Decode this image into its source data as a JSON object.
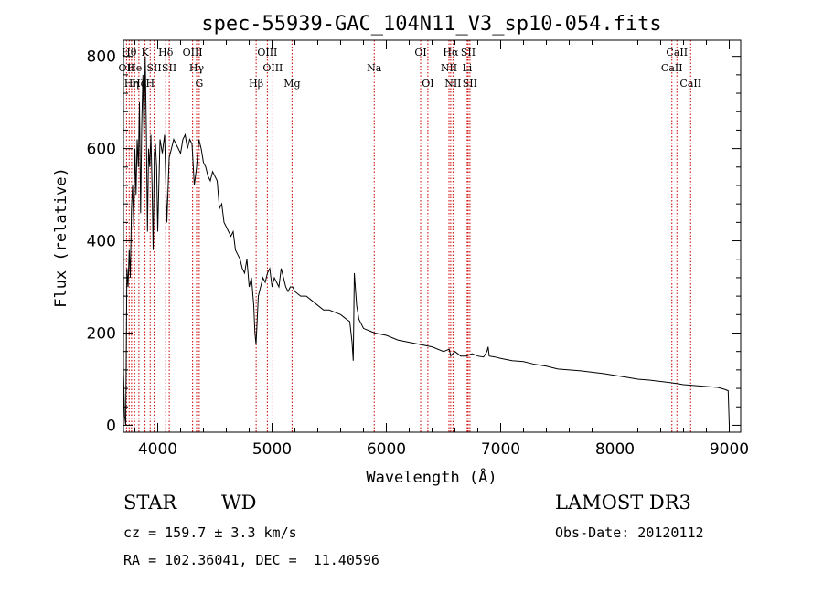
{
  "chart_data": {
    "type": "line",
    "title": "spec-55939-GAC_104N11_V3_sp10-054.fits",
    "xlabel": "Wavelength (Å)",
    "ylabel": "Flux (relative)",
    "xlim": [
      3700,
      9100
    ],
    "ylim": [
      -15,
      835
    ],
    "xticks": [
      4000,
      5000,
      6000,
      7000,
      8000,
      9000
    ],
    "yticks": [
      0,
      200,
      400,
      600,
      800
    ],
    "series": [
      {
        "name": "flux",
        "x": [
          3700,
          3710,
          3720,
          3730,
          3740,
          3750,
          3760,
          3770,
          3780,
          3790,
          3800,
          3810,
          3820,
          3830,
          3840,
          3850,
          3860,
          3870,
          3880,
          3890,
          3900,
          3910,
          3920,
          3930,
          3940,
          3950,
          3960,
          3970,
          3980,
          3990,
          4000,
          4020,
          4040,
          4060,
          4080,
          4100,
          4120,
          4140,
          4160,
          4180,
          4200,
          4220,
          4240,
          4260,
          4280,
          4300,
          4320,
          4340,
          4360,
          4380,
          4400,
          4420,
          4440,
          4460,
          4480,
          4500,
          4520,
          4540,
          4560,
          4580,
          4600,
          4620,
          4640,
          4660,
          4680,
          4700,
          4720,
          4740,
          4760,
          4780,
          4800,
          4820,
          4840,
          4850,
          4860,
          4870,
          4880,
          4900,
          4920,
          4940,
          4960,
          4980,
          5000,
          5020,
          5040,
          5060,
          5080,
          5100,
          5120,
          5140,
          5160,
          5180,
          5200,
          5250,
          5300,
          5350,
          5400,
          5450,
          5500,
          5550,
          5600,
          5650,
          5680,
          5700,
          5710,
          5720,
          5740,
          5760,
          5800,
          5850,
          5900,
          6000,
          6100,
          6200,
          6300,
          6400,
          6500,
          6550,
          6563,
          6580,
          6600,
          6650,
          6700,
          6750,
          6800,
          6850,
          6880,
          6890,
          6900,
          6950,
          7000,
          7100,
          7200,
          7300,
          7400,
          7500,
          7600,
          7700,
          7800,
          7900,
          8000,
          8100,
          8200,
          8300,
          8400,
          8500,
          8600,
          8700,
          8800,
          8900,
          8960,
          8980,
          8990,
          9000
        ],
        "values": [
          120,
          20,
          0,
          340,
          300,
          380,
          320,
          470,
          520,
          430,
          600,
          500,
          620,
          560,
          700,
          460,
          650,
          760,
          620,
          800,
          650,
          420,
          600,
          560,
          630,
          520,
          380,
          590,
          610,
          560,
          420,
          620,
          590,
          630,
          440,
          580,
          600,
          620,
          610,
          600,
          590,
          620,
          630,
          600,
          620,
          610,
          520,
          560,
          620,
          600,
          570,
          560,
          540,
          530,
          550,
          540,
          530,
          470,
          480,
          440,
          430,
          420,
          410,
          420,
          380,
          370,
          360,
          340,
          330,
          360,
          300,
          320,
          260,
          200,
          175,
          230,
          280,
          300,
          320,
          310,
          330,
          340,
          300,
          320,
          310,
          300,
          340,
          320,
          300,
          290,
          300,
          300,
          290,
          280,
          280,
          270,
          260,
          250,
          250,
          245,
          240,
          230,
          225,
          180,
          140,
          330,
          260,
          230,
          210,
          205,
          200,
          195,
          185,
          180,
          175,
          170,
          160,
          165,
          150,
          155,
          160,
          150,
          150,
          155,
          150,
          148,
          160,
          170,
          150,
          148,
          145,
          140,
          138,
          132,
          128,
          122,
          120,
          118,
          115,
          112,
          108,
          104,
          100,
          98,
          95,
          92,
          88,
          86,
          84,
          82,
          78,
          76,
          75,
          0
        ]
      }
    ],
    "lines": [
      {
        "name": "OII",
        "x": 3727,
        "row": 1
      },
      {
        "name": "Hθ",
        "x": 3750,
        "row": 0
      },
      {
        "name": "Hη",
        "x": 3771,
        "row": 2
      },
      {
        "name": "He",
        "x": 3798,
        "row": 1
      },
      {
        "name": "Hζ",
        "x": 3835,
        "row": 2
      },
      {
        "name": "K",
        "x": 3889,
        "row": 0
      },
      {
        "name": "H",
        "x": 3934,
        "row": 2
      },
      {
        "name": "SII",
        "x": 3969,
        "row": 1
      },
      {
        "name": "Hδ",
        "x": 4070,
        "row": 0
      },
      {
        "name": "SII",
        "x": 4101,
        "row": 1
      },
      {
        "name": "OIII",
        "x": 4305,
        "row": 0
      },
      {
        "name": "Hγ",
        "x": 4340,
        "row": 1
      },
      {
        "name": "G",
        "x": 4363,
        "row": 2
      },
      {
        "name": "Hβ",
        "x": 4861,
        "row": 2
      },
      {
        "name": "OIII",
        "x": 4959,
        "row": 0
      },
      {
        "name": "OIII",
        "x": 5007,
        "row": 1
      },
      {
        "name": "Mg",
        "x": 5175,
        "row": 2
      },
      {
        "name": "Na",
        "x": 5894,
        "row": 1
      },
      {
        "name": "OI",
        "x": 6300,
        "row": 0
      },
      {
        "name": "OI",
        "x": 6363,
        "row": 2
      },
      {
        "name": "NII",
        "x": 6548,
        "row": 1
      },
      {
        "name": "Hα",
        "x": 6563,
        "row": 0
      },
      {
        "name": "NII",
        "x": 6583,
        "row": 2
      },
      {
        "name": "SII",
        "x": 6716,
        "row": 0
      },
      {
        "name": "Li",
        "x": 6707,
        "row": 1
      },
      {
        "name": "SII",
        "x": 6731,
        "row": 2
      },
      {
        "name": "CaII",
        "x": 8498,
        "row": 1
      },
      {
        "name": "CaII",
        "x": 8542,
        "row": 0
      },
      {
        "name": "CaII",
        "x": 8662,
        "row": 2
      }
    ]
  },
  "info": {
    "class_label": "STAR",
    "subclass_label": "WD",
    "survey": "LAMOST DR3",
    "cz": "cz = 159.7 ± 3.3 km/s",
    "obs_date": "Obs-Date: 20120112",
    "coords": "RA = 102.36041, DEC =  11.40596"
  },
  "colors": {
    "axis": "#000000",
    "spectrum": "#000000",
    "line_marker": "#cc0000"
  }
}
